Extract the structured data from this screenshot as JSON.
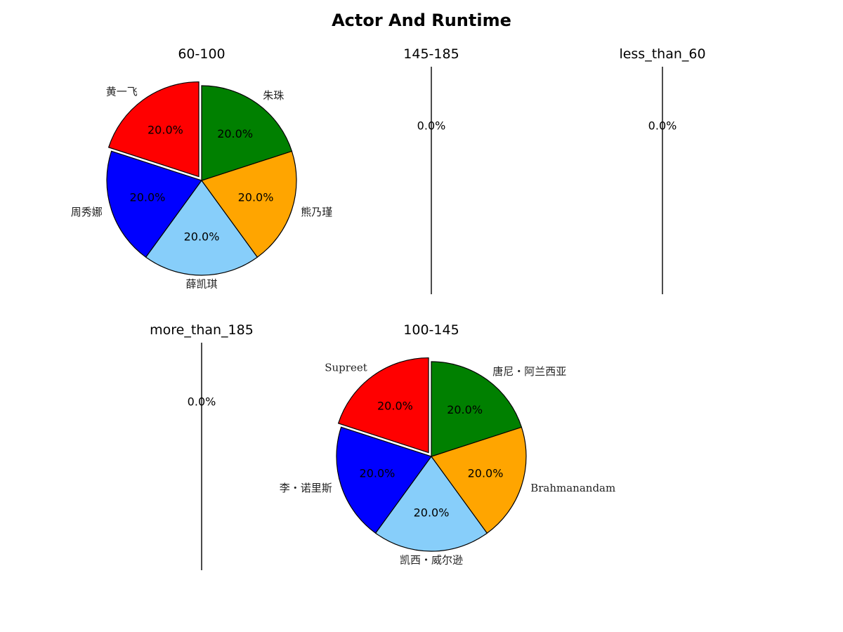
{
  "page_title": "Actor And Runtime",
  "chart_data": [
    {
      "type": "pie",
      "title": "60-100",
      "categories": [
        "黄一飞",
        "周秀娜",
        "薛凯琪",
        "熊乃瑾",
        "朱珠"
      ],
      "values": [
        20,
        20,
        20,
        20,
        20
      ],
      "percent_labels": [
        "20.0%",
        "20.0%",
        "20.0%",
        "20.0%",
        "20.0%"
      ],
      "colors": [
        "#ff0000",
        "#0000ff",
        "#87cefa",
        "#ffa500",
        "#008000"
      ],
      "exploded": [
        "黄一飞"
      ]
    },
    {
      "type": "pie",
      "title": "145-185",
      "categories": [],
      "values": [],
      "percent_labels": [
        "0.0%"
      ]
    },
    {
      "type": "pie",
      "title": "less_than_60",
      "categories": [],
      "values": [],
      "percent_labels": [
        "0.0%"
      ]
    },
    {
      "type": "pie",
      "title": "more_than_185",
      "categories": [],
      "values": [],
      "percent_labels": [
        "0.0%"
      ]
    },
    {
      "type": "pie",
      "title": "100-145",
      "categories": [
        "Supreet",
        "李・诺里斯",
        "凯西・威尔逊",
        "Brahmanandam",
        "唐尼・阿兰西亚"
      ],
      "values": [
        20,
        20,
        20,
        20,
        20
      ],
      "percent_labels": [
        "20.0%",
        "20.0%",
        "20.0%",
        "20.0%",
        "20.0%"
      ],
      "colors": [
        "#ff0000",
        "#0000ff",
        "#87cefa",
        "#ffa500",
        "#008000"
      ],
      "exploded": [
        "Supreet"
      ]
    }
  ]
}
